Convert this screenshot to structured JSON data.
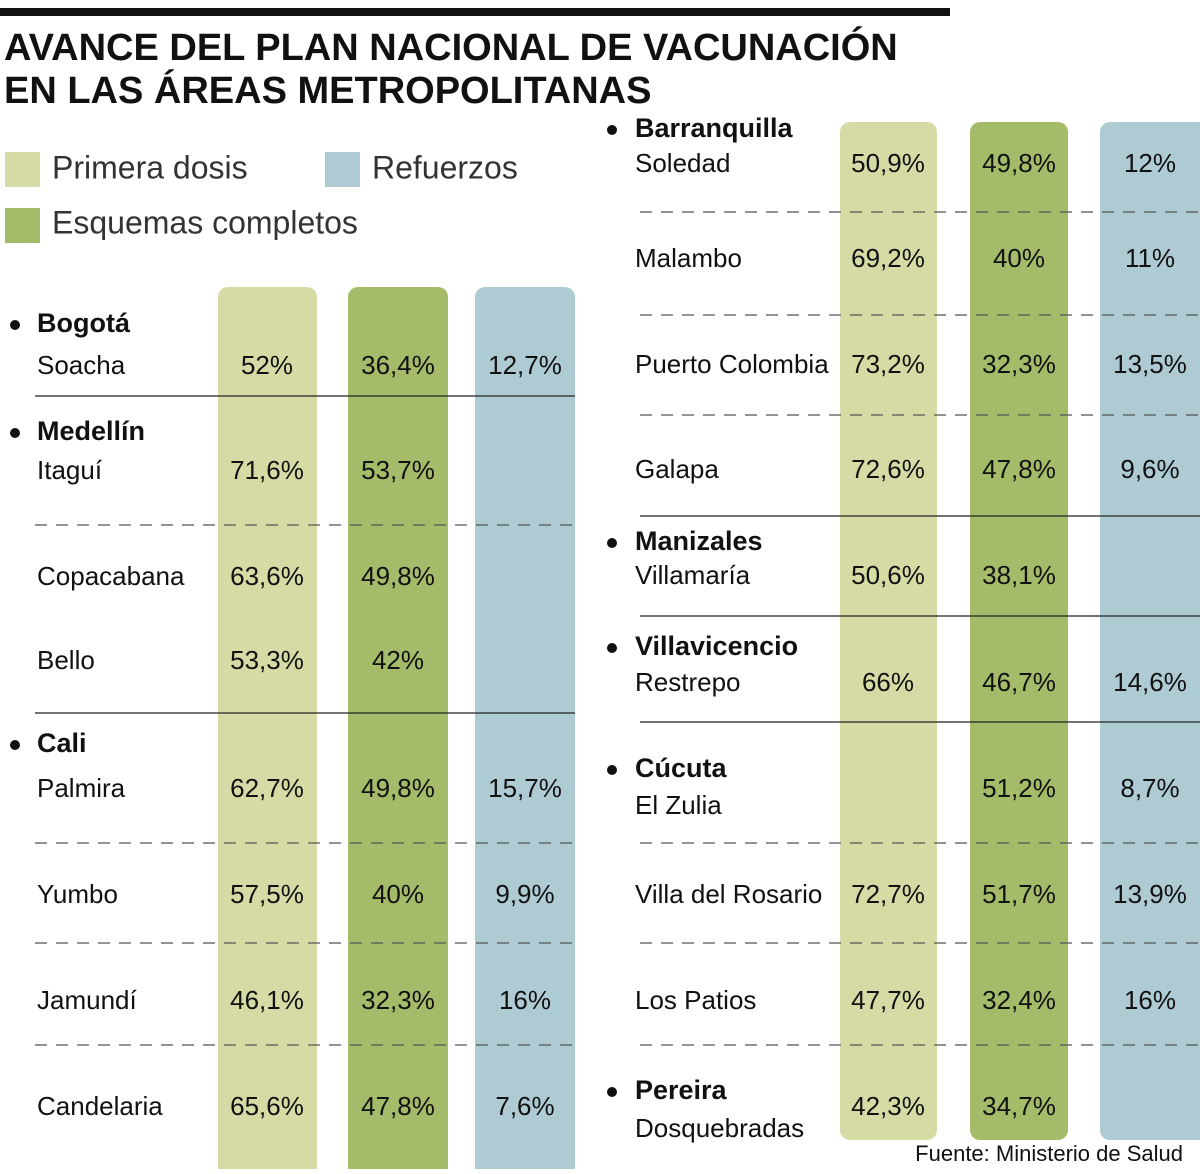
{
  "header": {
    "title_lines": [
      "AVANCE DEL PLAN NACIONAL DE VACUNACIÓN",
      "EN LAS ÁREAS METROPOLITANAS"
    ]
  },
  "legend": [
    "Primera dosis",
    "Refuerzos",
    "Esquemas completos"
  ],
  "left": {
    "groups": [
      {
        "city": "Bogotá",
        "rows": [
          {
            "name": "Soacha",
            "values": [
              "52%",
              "36,4%",
              "12,7%"
            ]
          }
        ]
      },
      {
        "city": "Medellín",
        "rows": [
          {
            "name": "Itaguí",
            "values": [
              "71,6%",
              "53,7%",
              null
            ]
          },
          {
            "name": "Copacabana",
            "values": [
              "63,6%",
              "49,8%",
              null
            ]
          },
          {
            "name": "Bello",
            "values": [
              "53,3%",
              "42%",
              null
            ]
          }
        ]
      },
      {
        "city": "Cali",
        "rows": [
          {
            "name": "Palmira",
            "values": [
              "62,7%",
              "49,8%",
              "15,7%"
            ]
          },
          {
            "name": "Yumbo",
            "values": [
              "57,5%",
              "40%",
              "9,9%"
            ]
          },
          {
            "name": "Jamundí",
            "values": [
              "46,1%",
              "32,3%",
              "16%"
            ]
          },
          {
            "name": "Candelaria",
            "values": [
              "65,6%",
              "47,8%",
              "7,6%"
            ]
          }
        ]
      }
    ]
  },
  "right": {
    "groups": [
      {
        "city": "Barranquilla",
        "rows": [
          {
            "name": "Soledad",
            "values": [
              "50,9%",
              "49,8%",
              "12%"
            ]
          },
          {
            "name": "Malambo",
            "values": [
              "69,2%",
              "40%",
              "11%"
            ]
          },
          {
            "name": "Puerto Colombia",
            "values": [
              "73,2%",
              "32,3%",
              "13,5%"
            ]
          },
          {
            "name": "Galapa",
            "values": [
              "72,6%",
              "47,8%",
              "9,6%"
            ]
          }
        ]
      },
      {
        "city": "Manizales",
        "rows": [
          {
            "name": "Villamaría",
            "values": [
              "50,6%",
              "38,1%",
              null
            ]
          }
        ]
      },
      {
        "city": "Villavicencio",
        "rows": [
          {
            "name": "Restrepo",
            "values": [
              "66%",
              "46,7%",
              "14,6%"
            ]
          }
        ]
      },
      {
        "city": "Cúcuta",
        "rows": [
          {
            "name": "El Zulia",
            "values": [
              null,
              "51,2%",
              "8,7%"
            ]
          },
          {
            "name": "Villa del Rosario",
            "values": [
              "72,7%",
              "51,7%",
              "13,9%"
            ]
          },
          {
            "name": "Los Patios",
            "values": [
              "47,7%",
              "32,4%",
              "16%"
            ]
          }
        ]
      },
      {
        "city": "Pereira",
        "rows": [
          {
            "name": "Dosquebradas",
            "values": [
              "42,3%",
              "34,7%",
              null
            ]
          }
        ]
      }
    ]
  },
  "source": "Fuente: Ministerio de Salud"
}
